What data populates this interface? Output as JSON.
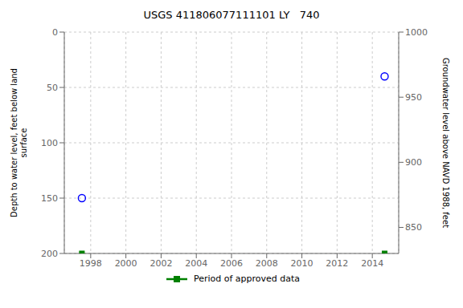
{
  "chart_data": {
    "type": "scatter",
    "title": "USGS 411806077111101 LY   740",
    "y_label": "Depth to water level, feet below land\n  surface",
    "y2_label": "Groundwater level above NAVD 1988, feet",
    "xlim": [
      1996.5,
      2015.5
    ],
    "xticks": [
      1998,
      2000,
      2002,
      2004,
      2006,
      2008,
      2010,
      2012,
      2014
    ],
    "ylim": [
      200,
      0
    ],
    "yticks": [
      0,
      50,
      100,
      150,
      200
    ],
    "y2lim": [
      830,
      1000
    ],
    "y2ticks": [
      850,
      900,
      950,
      1000
    ],
    "grid": true,
    "legend": "bottom",
    "series": [
      {
        "color": "#0000ff",
        "marker": "open_circle",
        "x": [
          1997.5,
          2014.7
        ],
        "values": [
          150,
          40
        ]
      },
      {
        "name": "Period of approved data",
        "color": "#008000",
        "marker": "square",
        "x": [
          1997.5,
          2014.7
        ],
        "values": [
          200,
          200
        ]
      }
    ]
  }
}
